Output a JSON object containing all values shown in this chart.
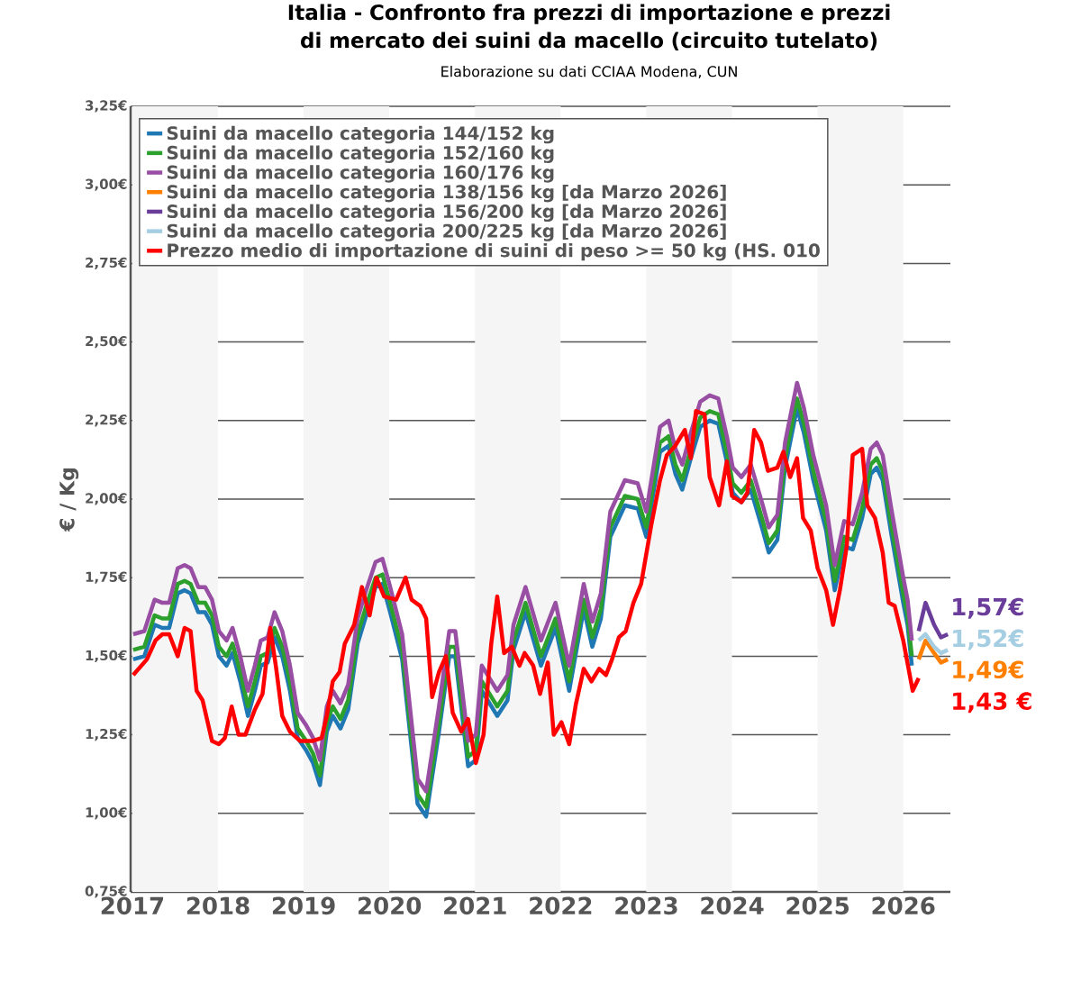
{
  "chart_data": {
    "type": "line",
    "title": "Italia - Confronto fra prezzi di importazione e prezzi di mercato dei suini da macello (circuito tutelato)",
    "subtitle": "Elaborazione su dati CCIAA Modena, CUN",
    "ylabel": "€ / Kg",
    "xlim": [
      2016.98,
      2026.55
    ],
    "xticks": [
      2017,
      2018,
      2019,
      2020,
      2021,
      2022,
      2023,
      2024,
      2025,
      2026
    ],
    "ylim": [
      0.75,
      3.25
    ],
    "yticks": [
      {
        "value": 0.75,
        "label": "0,75€"
      },
      {
        "value": 1.0,
        "label": "1,00€"
      },
      {
        "value": 1.25,
        "label": "1,25€"
      },
      {
        "value": 1.5,
        "label": "1,50€"
      },
      {
        "value": 1.75,
        "label": "1,75€"
      },
      {
        "value": 2.0,
        "label": "2,00€"
      },
      {
        "value": 2.25,
        "label": "2,25€"
      },
      {
        "value": 2.5,
        "label": "2,50€"
      },
      {
        "value": 2.75,
        "label": "2,75€"
      },
      {
        "value": 3.0,
        "label": "3,00€"
      },
      {
        "value": 3.25,
        "label": "3,25€"
      }
    ],
    "grid": "y",
    "legend": "top left",
    "marker": "none",
    "line_style": "solid",
    "bands": [
      {
        "axis": "x",
        "from": 2017,
        "to": 2018,
        "color": "#f5f5f5"
      },
      {
        "axis": "x",
        "from": 2019,
        "to": 2020,
        "color": "#f5f5f5"
      },
      {
        "axis": "x",
        "from": 2021,
        "to": 2022,
        "color": "#f5f5f5"
      },
      {
        "axis": "x",
        "from": 2023,
        "to": 2024,
        "color": "#f5f5f5"
      },
      {
        "axis": "x",
        "from": 2025,
        "to": 2026,
        "color": "#f5f5f5"
      }
    ],
    "series": [
      {
        "name": "Suini da macello categoria 144/152 kg",
        "color": "#1f77b4",
        "x": [
          2017.01,
          2017.14,
          2017.26,
          2017.35,
          2017.43,
          2017.53,
          2017.61,
          2017.68,
          2017.77,
          2017.85,
          2017.93,
          2018.01,
          2018.1,
          2018.17,
          2018.26,
          2018.35,
          2018.43,
          2018.5,
          2018.58,
          2018.66,
          2018.75,
          2018.84,
          2018.93,
          2019.03,
          2019.11,
          2019.19,
          2019.27,
          2019.34,
          2019.43,
          2019.52,
          2019.63,
          2019.73,
          2019.84,
          2019.92,
          2020.01,
          2020.15,
          2020.33,
          2020.43,
          2020.58,
          2020.7,
          2020.77,
          2020.92,
          2021.01,
          2021.08,
          2021.26,
          2021.38,
          2021.45,
          2021.59,
          2021.77,
          2021.94,
          2022.1,
          2022.27,
          2022.37,
          2022.47,
          2022.58,
          2022.75,
          2022.9,
          2023.0,
          2023.16,
          2023.26,
          2023.34,
          2023.42,
          2023.52,
          2023.63,
          2023.74,
          2023.84,
          2023.94,
          2024.01,
          2024.11,
          2024.22,
          2024.36,
          2024.43,
          2024.53,
          2024.62,
          2024.76,
          2024.84,
          2024.95,
          2025.1,
          2025.2,
          2025.31,
          2025.41,
          2025.52,
          2025.62,
          2025.69,
          2025.76,
          2025.86,
          2026.0,
          2026.05,
          2026.1
        ],
        "values": [
          1.49,
          1.5,
          1.6,
          1.59,
          1.59,
          1.7,
          1.71,
          1.7,
          1.64,
          1.64,
          1.6,
          1.5,
          1.47,
          1.51,
          1.42,
          1.31,
          1.39,
          1.47,
          1.48,
          1.56,
          1.5,
          1.39,
          1.24,
          1.2,
          1.16,
          1.09,
          1.26,
          1.31,
          1.27,
          1.33,
          1.54,
          1.63,
          1.72,
          1.73,
          1.64,
          1.49,
          1.03,
          0.99,
          1.26,
          1.5,
          1.5,
          1.15,
          1.17,
          1.39,
          1.31,
          1.36,
          1.52,
          1.64,
          1.47,
          1.59,
          1.39,
          1.65,
          1.53,
          1.62,
          1.88,
          1.98,
          1.97,
          1.88,
          2.15,
          2.17,
          2.08,
          2.03,
          2.13,
          2.23,
          2.25,
          2.24,
          2.12,
          2.02,
          1.99,
          2.03,
          1.9,
          1.83,
          1.87,
          2.1,
          2.29,
          2.21,
          2.06,
          1.9,
          1.71,
          1.85,
          1.84,
          1.94,
          2.08,
          2.1,
          2.06,
          1.89,
          1.67,
          1.6,
          1.47
        ]
      },
      {
        "name": "Suini da macello categoria 152/160 kg",
        "color": "#2ca02c",
        "x": [
          2017.01,
          2017.14,
          2017.26,
          2017.35,
          2017.43,
          2017.53,
          2017.61,
          2017.68,
          2017.77,
          2017.85,
          2017.93,
          2018.01,
          2018.1,
          2018.17,
          2018.26,
          2018.35,
          2018.43,
          2018.5,
          2018.58,
          2018.66,
          2018.75,
          2018.84,
          2018.93,
          2019.03,
          2019.11,
          2019.19,
          2019.27,
          2019.34,
          2019.43,
          2019.52,
          2019.63,
          2019.73,
          2019.84,
          2019.92,
          2020.01,
          2020.15,
          2020.33,
          2020.43,
          2020.58,
          2020.7,
          2020.77,
          2020.92,
          2021.01,
          2021.08,
          2021.26,
          2021.38,
          2021.45,
          2021.59,
          2021.77,
          2021.94,
          2022.1,
          2022.27,
          2022.37,
          2022.47,
          2022.58,
          2022.75,
          2022.9,
          2023.0,
          2023.16,
          2023.26,
          2023.34,
          2023.42,
          2023.52,
          2023.63,
          2023.74,
          2023.84,
          2023.94,
          2024.01,
          2024.11,
          2024.22,
          2024.36,
          2024.43,
          2024.53,
          2024.62,
          2024.76,
          2024.84,
          2024.95,
          2025.1,
          2025.2,
          2025.31,
          2025.41,
          2025.52,
          2025.62,
          2025.69,
          2025.76,
          2025.86,
          2026.0,
          2026.05,
          2026.1
        ],
        "values": [
          1.52,
          1.53,
          1.63,
          1.62,
          1.62,
          1.73,
          1.74,
          1.73,
          1.67,
          1.67,
          1.63,
          1.53,
          1.5,
          1.54,
          1.45,
          1.34,
          1.42,
          1.5,
          1.51,
          1.59,
          1.53,
          1.42,
          1.27,
          1.23,
          1.19,
          1.12,
          1.29,
          1.34,
          1.3,
          1.36,
          1.57,
          1.66,
          1.75,
          1.76,
          1.67,
          1.52,
          1.06,
          1.02,
          1.29,
          1.53,
          1.53,
          1.18,
          1.2,
          1.42,
          1.34,
          1.39,
          1.55,
          1.67,
          1.5,
          1.62,
          1.42,
          1.68,
          1.56,
          1.65,
          1.91,
          2.01,
          2.0,
          1.91,
          2.18,
          2.2,
          2.11,
          2.06,
          2.16,
          2.26,
          2.28,
          2.27,
          2.15,
          2.05,
          2.02,
          2.06,
          1.93,
          1.86,
          1.9,
          2.13,
          2.32,
          2.24,
          2.09,
          1.93,
          1.74,
          1.88,
          1.87,
          1.97,
          2.11,
          2.13,
          2.09,
          1.92,
          1.7,
          1.63,
          1.5
        ]
      },
      {
        "name": "Suini da macello categoria 160/176 kg",
        "color": "#984ea3",
        "x": [
          2017.01,
          2017.14,
          2017.26,
          2017.35,
          2017.43,
          2017.53,
          2017.61,
          2017.68,
          2017.77,
          2017.85,
          2017.93,
          2018.01,
          2018.1,
          2018.17,
          2018.26,
          2018.35,
          2018.43,
          2018.5,
          2018.58,
          2018.66,
          2018.75,
          2018.84,
          2018.93,
          2019.03,
          2019.11,
          2019.19,
          2019.27,
          2019.34,
          2019.43,
          2019.52,
          2019.63,
          2019.73,
          2019.84,
          2019.92,
          2020.01,
          2020.15,
          2020.33,
          2020.43,
          2020.58,
          2020.7,
          2020.77,
          2020.92,
          2021.01,
          2021.08,
          2021.26,
          2021.38,
          2021.45,
          2021.59,
          2021.77,
          2021.94,
          2022.1,
          2022.27,
          2022.37,
          2022.47,
          2022.58,
          2022.75,
          2022.9,
          2023.0,
          2023.16,
          2023.26,
          2023.34,
          2023.42,
          2023.52,
          2023.63,
          2023.74,
          2023.84,
          2023.94,
          2024.01,
          2024.11,
          2024.22,
          2024.36,
          2024.43,
          2024.53,
          2024.62,
          2024.76,
          2024.84,
          2024.95,
          2025.1,
          2025.2,
          2025.31,
          2025.41,
          2025.52,
          2025.62,
          2025.69,
          2025.76,
          2025.86,
          2026.0,
          2026.05,
          2026.1
        ],
        "values": [
          1.57,
          1.58,
          1.68,
          1.67,
          1.67,
          1.78,
          1.79,
          1.78,
          1.72,
          1.72,
          1.68,
          1.58,
          1.55,
          1.59,
          1.5,
          1.39,
          1.47,
          1.55,
          1.56,
          1.64,
          1.58,
          1.47,
          1.32,
          1.28,
          1.24,
          1.17,
          1.34,
          1.39,
          1.35,
          1.41,
          1.62,
          1.71,
          1.8,
          1.81,
          1.72,
          1.57,
          1.11,
          1.07,
          1.34,
          1.58,
          1.58,
          1.23,
          1.25,
          1.47,
          1.39,
          1.44,
          1.6,
          1.72,
          1.55,
          1.67,
          1.47,
          1.73,
          1.61,
          1.7,
          1.96,
          2.06,
          2.05,
          1.96,
          2.23,
          2.25,
          2.16,
          2.11,
          2.21,
          2.31,
          2.33,
          2.32,
          2.2,
          2.1,
          2.07,
          2.11,
          1.98,
          1.91,
          1.95,
          2.18,
          2.37,
          2.29,
          2.14,
          1.98,
          1.79,
          1.93,
          1.92,
          2.02,
          2.16,
          2.18,
          2.14,
          1.97,
          1.75,
          1.68,
          1.55
        ]
      },
      {
        "name": "Suini da macello categoria 138/156 kg [da Marzo 2026]",
        "color": "#ff7f00",
        "x": [
          2026.18,
          2026.26,
          2026.36,
          2026.44,
          2026.52
        ],
        "values": [
          1.49,
          1.55,
          1.51,
          1.48,
          1.49
        ],
        "value_labels": [
          null,
          null,
          null,
          null,
          "1,49€"
        ]
      },
      {
        "name": "Suini da macello categoria 156/200 kg [da Marzo 2026]",
        "color": "#6a3d9a",
        "x": [
          2026.18,
          2026.26,
          2026.36,
          2026.44,
          2026.52
        ],
        "values": [
          1.58,
          1.67,
          1.6,
          1.56,
          1.57
        ],
        "value_labels": [
          null,
          null,
          null,
          null,
          "1,57€"
        ]
      },
      {
        "name": "Suini da macello categoria 200/225 kg [da Marzo 2026]",
        "color": "#a6cee3",
        "x": [
          2026.18,
          2026.26,
          2026.36,
          2026.44,
          2026.52
        ],
        "values": [
          1.55,
          1.57,
          1.53,
          1.51,
          1.52
        ],
        "value_labels": [
          null,
          null,
          null,
          null,
          "1,52€"
        ]
      },
      {
        "name": "Prezzo medio di importazione di suini di peso >= 50 kg (HS. 010",
        "color": "#ff0000",
        "x": [
          2017.01,
          2017.17,
          2017.27,
          2017.35,
          2017.43,
          2017.53,
          2017.61,
          2017.68,
          2017.75,
          2017.82,
          2017.93,
          2018.01,
          2018.08,
          2018.16,
          2018.24,
          2018.32,
          2018.43,
          2018.52,
          2018.61,
          2018.68,
          2018.75,
          2018.84,
          2018.96,
          2019.1,
          2019.21,
          2019.27,
          2019.34,
          2019.42,
          2019.48,
          2019.59,
          2019.68,
          2019.77,
          2019.85,
          2019.94,
          2020.08,
          2020.19,
          2020.26,
          2020.36,
          2020.43,
          2020.5,
          2020.58,
          2020.66,
          2020.74,
          2020.84,
          2020.92,
          2021.01,
          2021.1,
          2021.19,
          2021.26,
          2021.34,
          2021.43,
          2021.52,
          2021.58,
          2021.68,
          2021.76,
          2021.85,
          2021.92,
          2022.01,
          2022.1,
          2022.18,
          2022.27,
          2022.36,
          2022.45,
          2022.53,
          2022.6,
          2022.68,
          2022.76,
          2022.85,
          2022.94,
          2023.06,
          2023.16,
          2023.24,
          2023.34,
          2023.45,
          2023.52,
          2023.58,
          2023.68,
          2023.74,
          2023.85,
          2023.94,
          2024.0,
          2024.11,
          2024.18,
          2024.26,
          2024.34,
          2024.42,
          2024.53,
          2024.6,
          2024.68,
          2024.76,
          2024.83,
          2024.92,
          2025.0,
          2025.1,
          2025.18,
          2025.26,
          2025.34,
          2025.41,
          2025.52,
          2025.58,
          2025.67,
          2025.76,
          2025.83,
          2025.9,
          2026.0,
          2026.11,
          2026.18
        ],
        "values": [
          1.44,
          1.49,
          1.55,
          1.57,
          1.57,
          1.5,
          1.59,
          1.58,
          1.39,
          1.36,
          1.23,
          1.22,
          1.24,
          1.34,
          1.25,
          1.25,
          1.33,
          1.38,
          1.59,
          1.46,
          1.31,
          1.26,
          1.23,
          1.23,
          1.24,
          1.31,
          1.42,
          1.45,
          1.54,
          1.6,
          1.72,
          1.63,
          1.75,
          1.69,
          1.68,
          1.75,
          1.68,
          1.66,
          1.62,
          1.37,
          1.45,
          1.5,
          1.32,
          1.26,
          1.3,
          1.16,
          1.25,
          1.54,
          1.69,
          1.51,
          1.53,
          1.47,
          1.51,
          1.47,
          1.38,
          1.48,
          1.25,
          1.29,
          1.22,
          1.35,
          1.46,
          1.42,
          1.46,
          1.44,
          1.49,
          1.56,
          1.58,
          1.67,
          1.73,
          1.92,
          2.06,
          2.14,
          2.17,
          2.22,
          2.13,
          2.28,
          2.27,
          2.07,
          1.98,
          2.12,
          2.01,
          1.99,
          2.02,
          2.22,
          2.18,
          2.09,
          2.1,
          2.15,
          2.07,
          2.13,
          1.94,
          1.9,
          1.78,
          1.71,
          1.6,
          1.71,
          1.85,
          2.14,
          2.16,
          1.98,
          1.94,
          1.83,
          1.67,
          1.66,
          1.55,
          1.39,
          1.43
        ],
        "value_labels": [
          null,
          null,
          null,
          null,
          null,
          null,
          null,
          null,
          null,
          null,
          null,
          null,
          null,
          null,
          null,
          null,
          null,
          null,
          null,
          null,
          null,
          null,
          null,
          null,
          null,
          null,
          null,
          null,
          null,
          null,
          null,
          null,
          null,
          null,
          null,
          null,
          null,
          null,
          null,
          null,
          null,
          null,
          null,
          null,
          null,
          null,
          null,
          null,
          null,
          null,
          null,
          null,
          null,
          null,
          null,
          null,
          null,
          null,
          null,
          null,
          null,
          null,
          null,
          null,
          null,
          null,
          null,
          null,
          null,
          null,
          null,
          null,
          null,
          null,
          null,
          null,
          null,
          null,
          null,
          null,
          null,
          null,
          null,
          null,
          null,
          null,
          null,
          null,
          null,
          null,
          null,
          null,
          null,
          null,
          null,
          null,
          null,
          null,
          null,
          null,
          null,
          null,
          null,
          null,
          null,
          null,
          "1,43 €"
        ]
      }
    ]
  }
}
